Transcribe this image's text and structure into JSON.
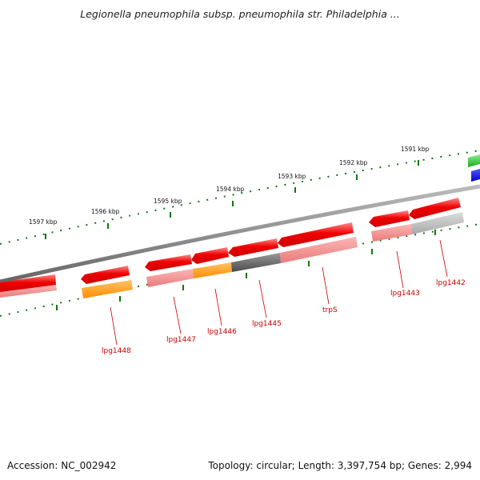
{
  "title": "Legionella pneumophila subsp. pneumophila str. Philadelphia ...",
  "footer": {
    "accession": "Accession: NC_002942",
    "summary": "Topology: circular; Length: 3,397,754 bp; Genes: 2,994"
  },
  "kbp_labels": [
    "1597 kbp",
    "1596 kbp",
    "1595 kbp",
    "1594 kbp",
    "1593 kbp",
    "1592 kbp",
    "1591 kbp"
  ],
  "gene_labels": [
    "lpg1448",
    "lpg1447",
    "lpg1446",
    "lpg1445",
    "trpS",
    "lpg1443",
    "lpg1442"
  ],
  "colors": {
    "gene_red": "#ee0000",
    "gene_pink": "#f08080",
    "gene_orange": "#ff9900",
    "gene_gray": "#666666",
    "gene_lightgray": "#c0c0c0",
    "gene_green": "#33cc33",
    "gene_blue": "#0000ee",
    "tick_green": "#117711",
    "label_red": "#cc0000",
    "backbone": "#888888"
  }
}
